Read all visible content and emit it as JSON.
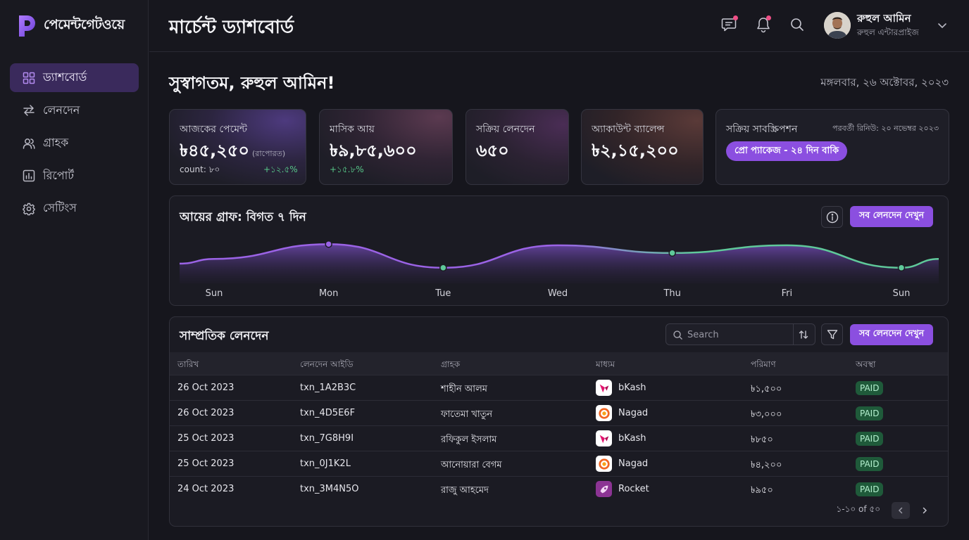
{
  "brand": {
    "name": "পেমেন্টগেটওয়ে"
  },
  "sidebar": {
    "items": [
      {
        "label": "ড্যাশবোর্ড",
        "icon": "grid-icon",
        "active": true
      },
      {
        "label": "লেনদেন",
        "icon": "swap-arrows-icon",
        "active": false
      },
      {
        "label": "গ্রাহক",
        "icon": "users-icon",
        "active": false
      },
      {
        "label": "রিপোর্ট",
        "icon": "report-chart-icon",
        "active": false
      },
      {
        "label": "সেটিংস",
        "icon": "gear-icon",
        "active": false
      }
    ]
  },
  "header": {
    "title": "মার্চেন্ট ড্যাশবোর্ড",
    "user": {
      "name": "রুহুল আমিন",
      "role": "রুহুল এন্টারপ্রাইজ"
    }
  },
  "welcome": {
    "greeting": "সুস্বাগতম, রুহুল আমিন!",
    "date": "মঙ্গলবার, ২৬ অক্টোবর, ২০২৩"
  },
  "stats": {
    "today": {
      "label": "আজকের পেমেন্ট",
      "value": "৳৪৫,২৫০",
      "note": "(রাপোরত)",
      "count": "count: ৮০",
      "change": "+১২.৫%"
    },
    "monthly": {
      "label": "মাসিক আয়",
      "value": "৳৯,৮৫,৬০০",
      "change": "+১৫.৮%"
    },
    "active_tx": {
      "label": "সক্রিয় লেনদেন",
      "value": "৬৫০"
    },
    "balance": {
      "label": "অ্যাকাউন্ট ব্যালেন্স",
      "value": "৳২,১৫,২০০"
    },
    "subscription": {
      "label": "সক্রিয় সাবস্ক্রিপশন",
      "renew": "পরবর্তী রিনিউ: ২০ নভেম্বর ২০২৩",
      "pill": "প্রো প্যাকেজ - ২৪ দিন বাকি"
    }
  },
  "revenue_chart": {
    "title": "আয়ের গ্রাফ: বিগত ৭ দিন",
    "button": "সব লেনদেন দেখুন"
  },
  "chart_data": {
    "type": "area",
    "categories": [
      "Sun",
      "Mon",
      "Tue",
      "Wed",
      "Thu",
      "Fri",
      "Sun"
    ],
    "values": [
      35,
      60,
      20,
      58,
      45,
      58,
      20
    ],
    "colors": {
      "first_half": "#9b63e6",
      "second_half": "#5fc99a"
    }
  },
  "transactions": {
    "title": "সাম্প্রতিক লেনদেন",
    "search_placeholder": "Search",
    "button": "সব লেনদেন দেখুন",
    "columns": [
      "তারিখ",
      "লেনদেন আইডি",
      "গ্রাহক",
      "মাধ্যম",
      "পরিমাণ",
      "অবস্থা"
    ],
    "rows": [
      {
        "date": "26 Oct 2023",
        "id": "txn_1A2B3C",
        "customer": "শাহীন আলম",
        "method": "bKash",
        "amount": "৳১,৫০০",
        "status": "PAID"
      },
      {
        "date": "26 Oct 2023",
        "id": "txn_4D5E6F",
        "customer": "ফাতেমা খাতুন",
        "method": "Nagad",
        "amount": "৳৩,০০০",
        "status": "PAID"
      },
      {
        "date": "25 Oct 2023",
        "id": "txn_7G8H9I",
        "customer": "রফিকুল ইসলাম",
        "method": "bKash",
        "amount": "৳৮৫০",
        "status": "PAID"
      },
      {
        "date": "25 Oct 2023",
        "id": "txn_0J1K2L",
        "customer": "আনোয়ারা বেগম",
        "method": "Nagad",
        "amount": "৳৪,২০০",
        "status": "PAID"
      },
      {
        "date": "24 Oct 2023",
        "id": "txn_3M4N5O",
        "customer": "রাজু আহমেদ",
        "method": "Rocket",
        "amount": "৳৯৫০",
        "status": "PAID"
      }
    ],
    "pagination": "১-১০ of ৫০"
  },
  "colors": {
    "accent": "#8b4fe0",
    "success": "#58c98a",
    "bkash": "#e2136e",
    "nagad": "#f26522",
    "rocket": "#8c3494"
  }
}
